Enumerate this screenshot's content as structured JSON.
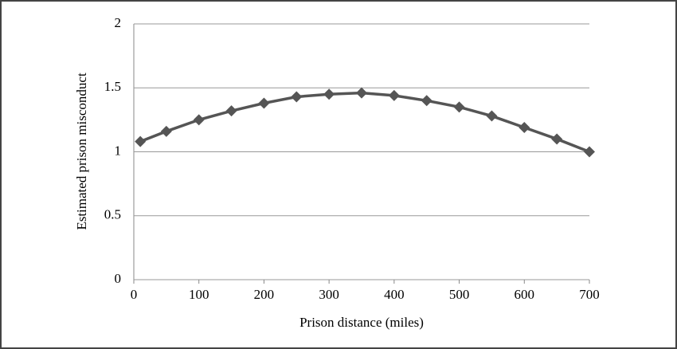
{
  "chart_data": {
    "type": "line",
    "x_label": "Prison distance (miles)",
    "y_label": "Estimated prison misconduct",
    "x": [
      10,
      50,
      100,
      150,
      200,
      250,
      300,
      350,
      400,
      450,
      500,
      550,
      600,
      650,
      700
    ],
    "values": [
      1.08,
      1.16,
      1.25,
      1.32,
      1.38,
      1.43,
      1.45,
      1.46,
      1.44,
      1.4,
      1.35,
      1.28,
      1.19,
      1.1,
      1.0
    ],
    "color": "#555555",
    "xlim": [
      0,
      700
    ],
    "xticks": [
      0,
      100,
      200,
      300,
      400,
      500,
      600,
      700
    ],
    "ylim": [
      0,
      2
    ],
    "yticks": [
      0,
      0.5,
      1,
      1.5,
      2
    ],
    "grid": true
  }
}
